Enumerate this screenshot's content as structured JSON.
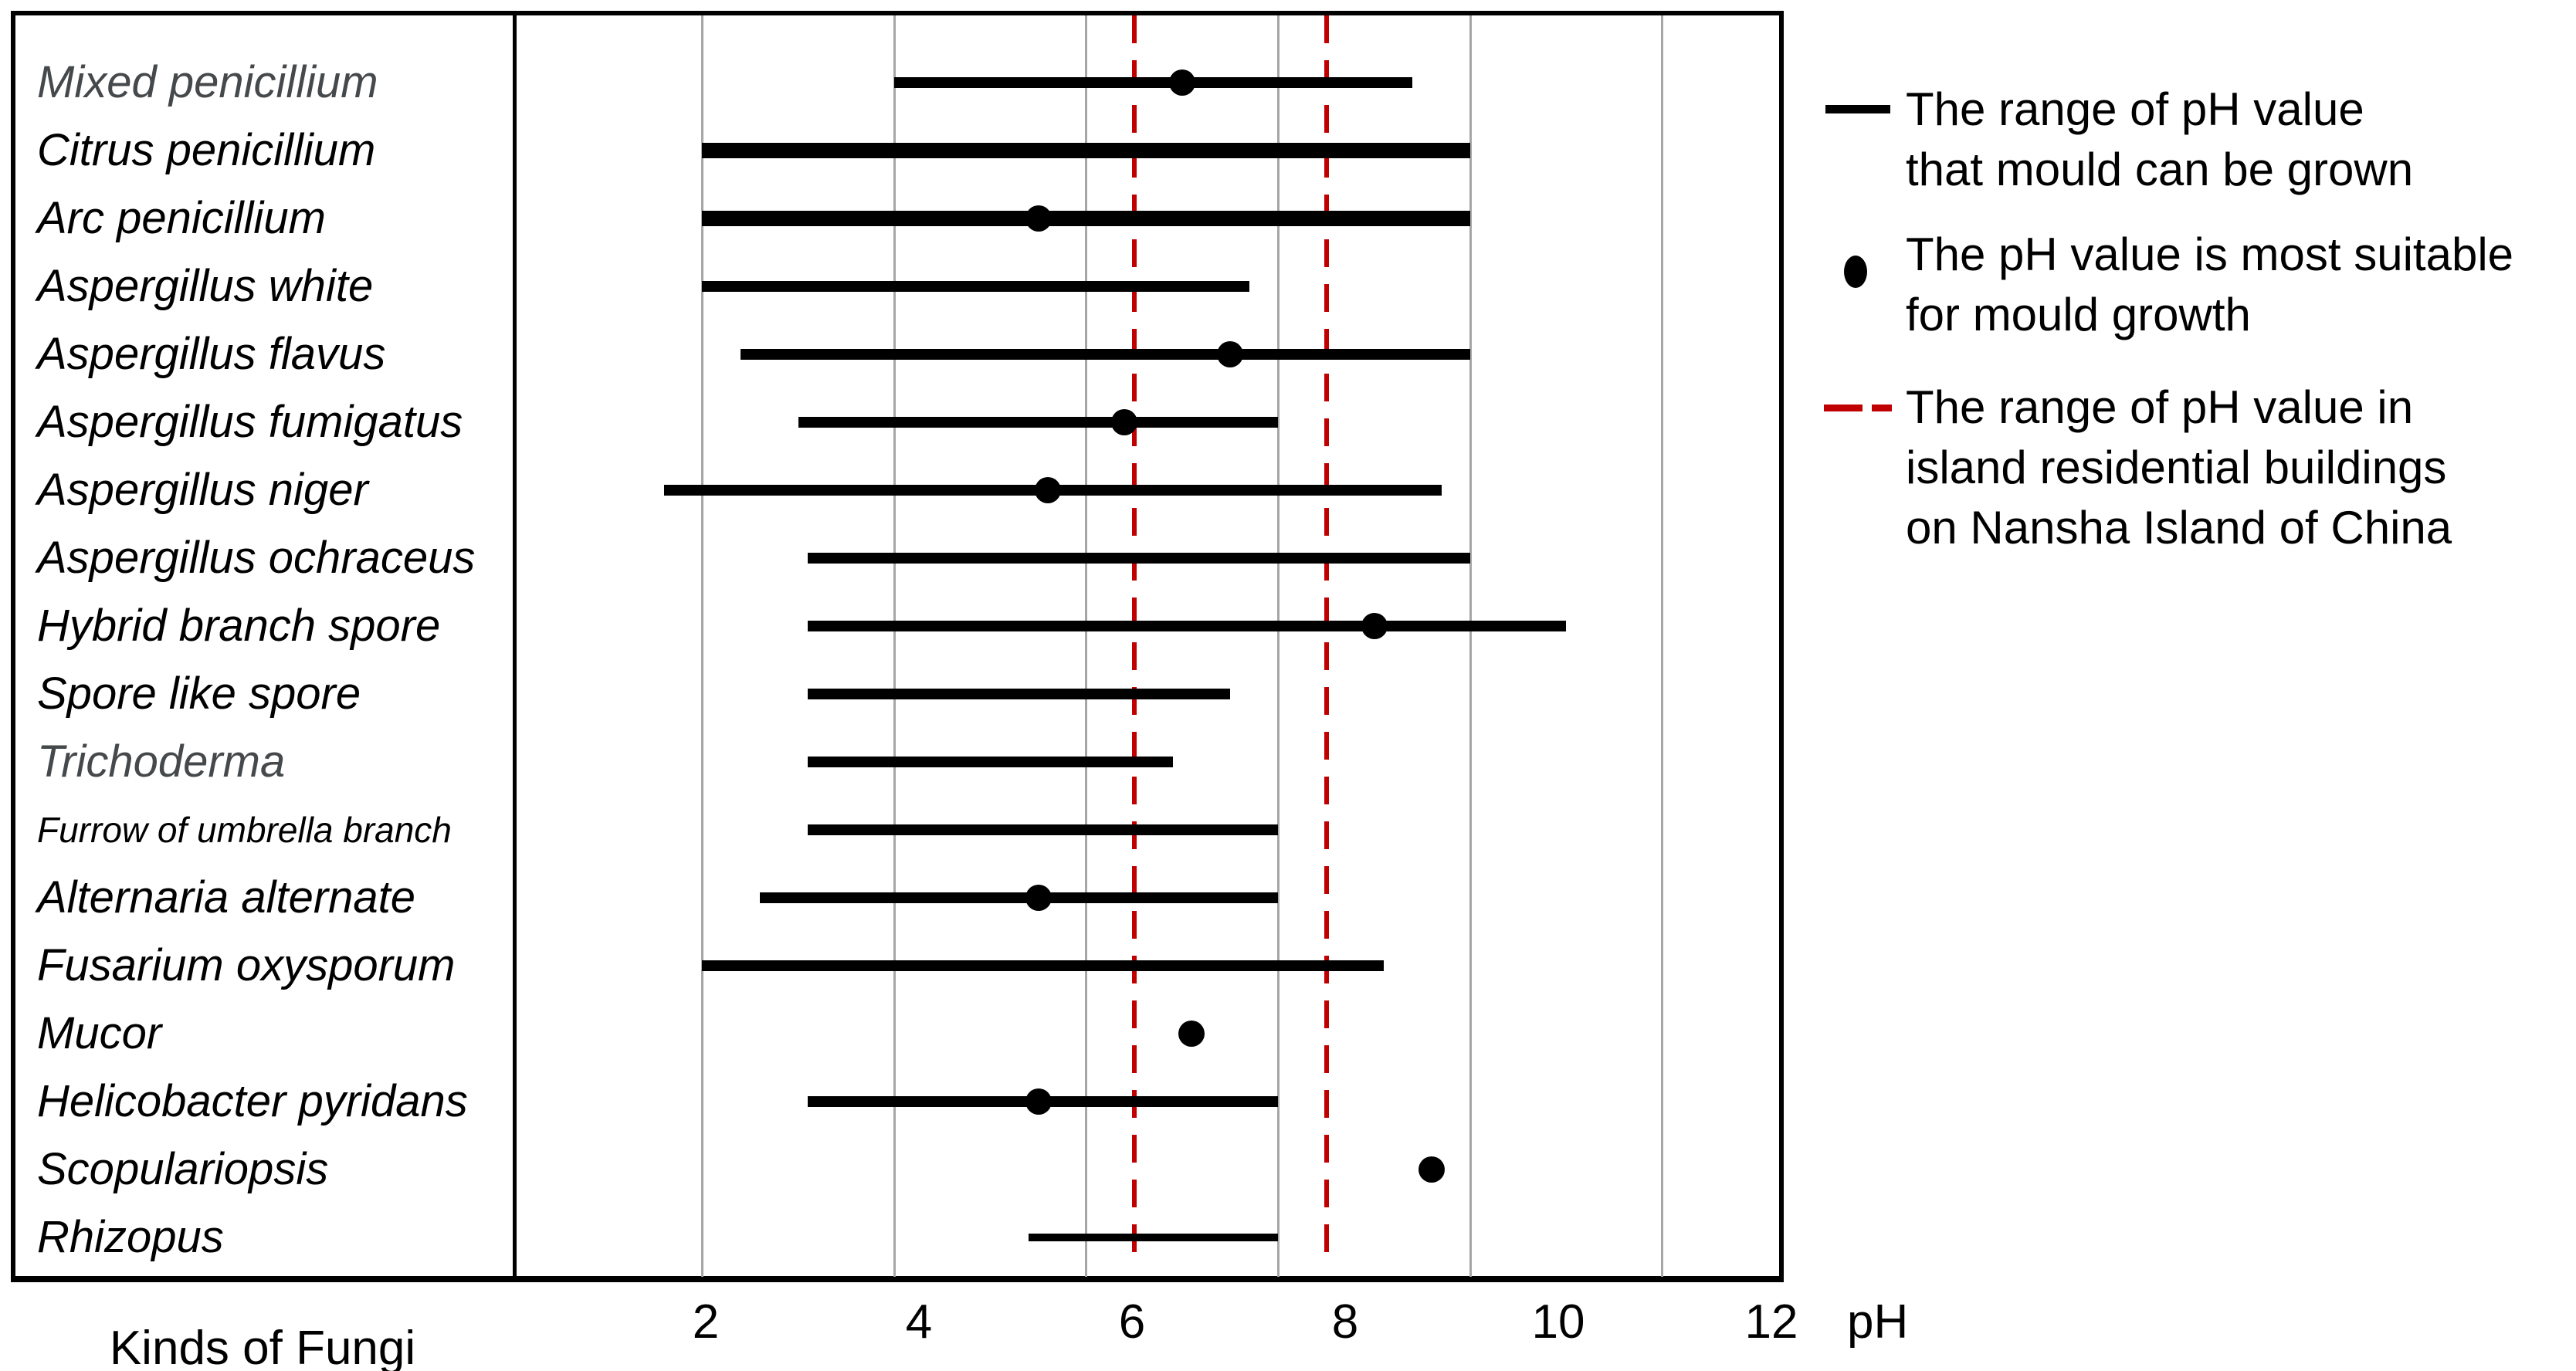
{
  "chart_data": {
    "type": "scatter",
    "subtype": "range-dot",
    "title": "",
    "x_axis": {
      "label": "pH",
      "ticks": [
        2,
        4,
        6,
        8,
        10,
        12
      ],
      "min": 0,
      "max": 13.2,
      "grid": true
    },
    "category_axis_label": "Kinds of Fungi",
    "rows": [
      {
        "name": "Mixed penicillium",
        "range": [
          4.0,
          9.4
        ],
        "optimum": 7.0,
        "muted": true
      },
      {
        "name": "Citrus penicillium",
        "range": [
          2.0,
          10.0
        ],
        "optimum": null,
        "weight": "thick"
      },
      {
        "name": "Arc penicillium",
        "range": [
          2.0,
          10.0
        ],
        "optimum": 5.5,
        "weight": "thick"
      },
      {
        "name": "Aspergillus white",
        "range": [
          2.0,
          7.7
        ],
        "optimum": null
      },
      {
        "name": "Aspergillus flavus",
        "range": [
          2.4,
          10.0
        ],
        "optimum": 7.5
      },
      {
        "name": "Aspergillus fumigatus",
        "range": [
          3.0,
          8.0
        ],
        "optimum": 6.4
      },
      {
        "name": "Aspergillus niger",
        "range": [
          1.6,
          9.7
        ],
        "optimum": 5.6
      },
      {
        "name": "Aspergillus ochraceus",
        "range": [
          3.1,
          10.0
        ],
        "optimum": null
      },
      {
        "name": "Hybrid branch spore",
        "range": [
          3.1,
          11.0
        ],
        "optimum": 9.0
      },
      {
        "name": "Spore like spore",
        "range": [
          3.1,
          7.5
        ],
        "optimum": null
      },
      {
        "name": "Trichoderma",
        "range": [
          3.1,
          6.9
        ],
        "optimum": null,
        "muted": true
      },
      {
        "name": "Furrow of umbrella branch",
        "range": [
          3.1,
          8.0
        ],
        "optimum": null,
        "small": true
      },
      {
        "name": "Alternaria alternate",
        "range": [
          2.6,
          8.0
        ],
        "optimum": 5.5
      },
      {
        "name": "Fusarium oxysporum",
        "range": [
          2.0,
          9.1
        ],
        "optimum": null
      },
      {
        "name": "Mucor",
        "range": null,
        "optimum": 7.1
      },
      {
        "name": "Helicobacter pyridans",
        "range": [
          3.1,
          8.0
        ],
        "optimum": 5.5
      },
      {
        "name": "Scopulariopsis",
        "range": null,
        "optimum": 9.6,
        "weight": "thin"
      },
      {
        "name": "Rhizopus",
        "range": [
          5.4,
          8.0
        ],
        "optimum": null,
        "weight": "thin"
      }
    ],
    "reference_lines": {
      "values": [
        6.5,
        8.5
      ],
      "style": "dashed"
    },
    "legend": [
      {
        "swatch": "solid-line-swatch",
        "text": [
          "The range of pH value",
          "that mould can be grown"
        ]
      },
      {
        "swatch": "dot-swatch",
        "text": [
          "The pH value is most suitable",
          "for mould growth"
        ]
      },
      {
        "swatch": "red-dashed-swatch",
        "text": [
          "The range of pH value in",
          "island residential buildings",
          "on Nansha Island of China"
        ]
      }
    ],
    "layout_hints": {
      "legend_position": "right",
      "grid": "vertical-only"
    },
    "colors": {
      "line": "#000000",
      "dot": "#000000",
      "grid": "#a6a6a6",
      "reference": "#c00000",
      "muted_label": "#45494b",
      "background": "#ffffff"
    }
  }
}
